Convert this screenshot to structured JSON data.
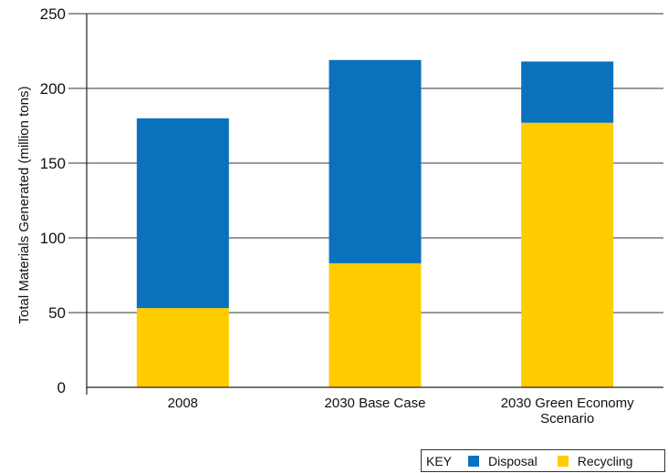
{
  "chart_data": {
    "type": "bar",
    "stacked": true,
    "categories": [
      "2008",
      "2030 Base Case",
      "2030 Green Economy\nScenario"
    ],
    "series": [
      {
        "name": "Recycling",
        "color": "#FFCC00",
        "values": [
          53,
          83,
          177
        ]
      },
      {
        "name": "Disposal",
        "color": "#0A72BC",
        "values": [
          127,
          136,
          41
        ]
      }
    ],
    "ylabel": "Total Materials Generated (million tons)",
    "xlabel": "",
    "ylim": [
      0,
      250
    ],
    "yticks": [
      0,
      50,
      100,
      150,
      200,
      250
    ],
    "grid": true,
    "legend": {
      "title": "KEY",
      "position": "bottom-right"
    }
  }
}
